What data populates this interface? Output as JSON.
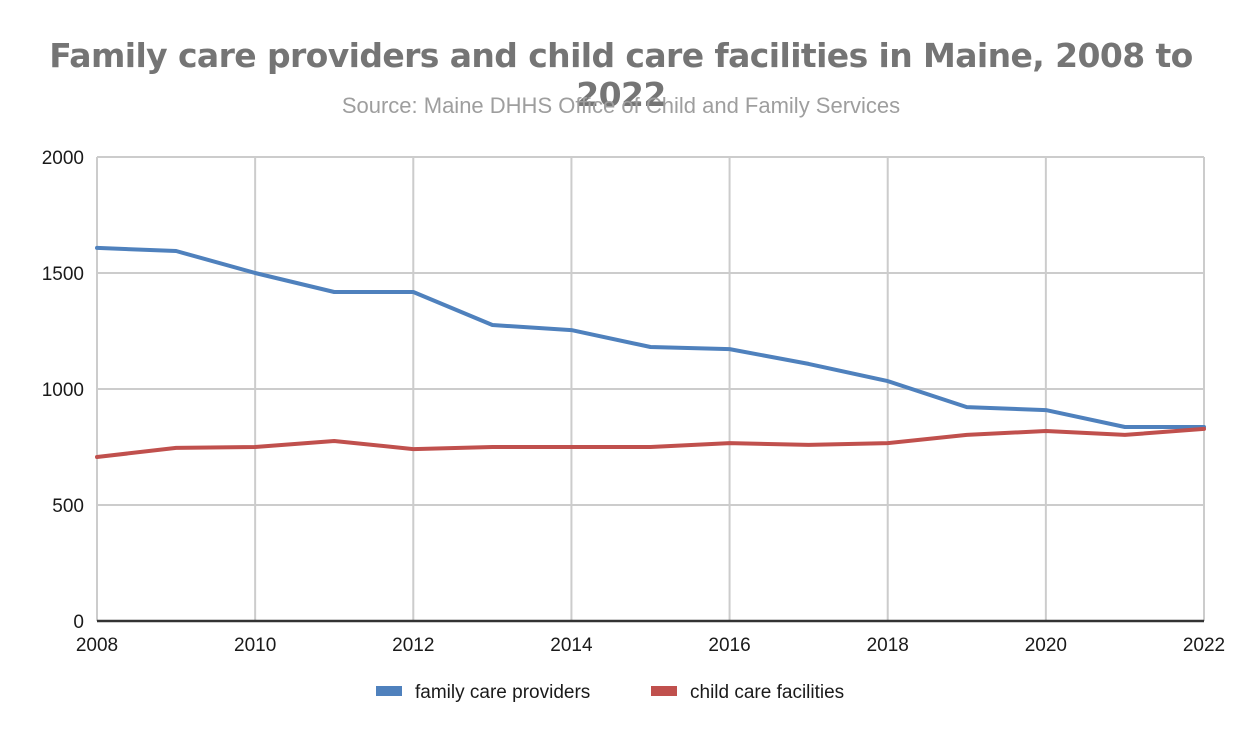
{
  "chart_data": {
    "type": "line",
    "title": "Family care providers and child care facilities in Maine, 2008 to 2022",
    "subtitle": "Source: Maine DHHS Office of Child and Family Services",
    "xlabel": "",
    "ylabel": "",
    "x": [
      2008,
      2009,
      2010,
      2011,
      2012,
      2013,
      2014,
      2015,
      2016,
      2017,
      2018,
      2019,
      2020,
      2021,
      2022
    ],
    "xlim": [
      2008,
      2022
    ],
    "ylim": [
      0,
      2000
    ],
    "x_ticks": [
      "2008",
      "2010",
      "2012",
      "2014",
      "2016",
      "2018",
      "2020",
      "2022"
    ],
    "y_ticks": [
      "0",
      "500",
      "1000",
      "1500",
      "2000"
    ],
    "grid": true,
    "legend_position": "bottom",
    "series": [
      {
        "name": "family care providers",
        "color": "#4f81bd",
        "values": [
          1608,
          1595,
          1500,
          1418,
          1418,
          1276,
          1254,
          1181,
          1172,
          1108,
          1034,
          922,
          909,
          836,
          836
        ]
      },
      {
        "name": "child care facilities",
        "color": "#c0504d",
        "values": [
          707,
          746,
          750,
          776,
          741,
          750,
          750,
          750,
          767,
          759,
          767,
          802,
          819,
          802,
          828
        ]
      }
    ]
  }
}
